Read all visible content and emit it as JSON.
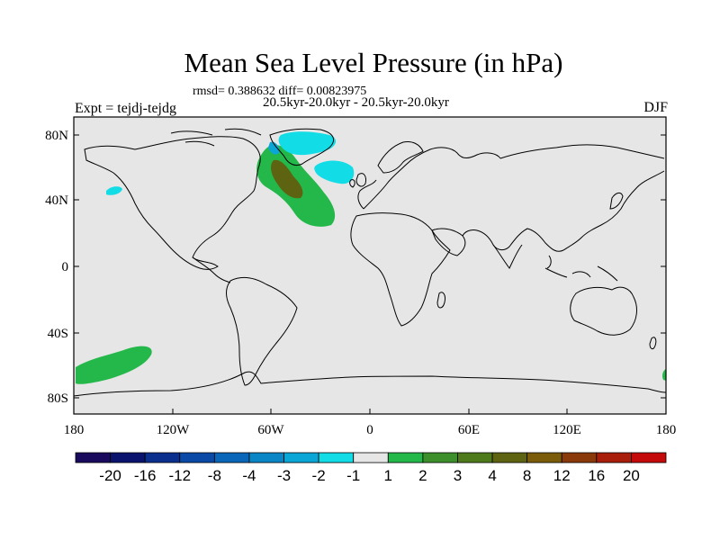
{
  "title": "Mean Sea Level Pressure (in hPa)",
  "stats": "rmsd= 0.388632 diff= 0.00823975",
  "period": "20.5kyr-20.0kyr - 20.5kyr-20.0kyr",
  "experiment": "Expt = tejdj-tejdg",
  "season": "DJF",
  "lat_ticks": [
    "80N",
    "40N",
    "0",
    "40S",
    "80S"
  ],
  "lon_ticks": [
    "180",
    "120W",
    "60W",
    "0",
    "60E",
    "120E",
    "180"
  ],
  "colorbar": {
    "colors": [
      "#1a0a5e",
      "#0a136e",
      "#0b2f8c",
      "#0a4aa6",
      "#0a66b8",
      "#0a85c6",
      "#0aa6d6",
      "#12dce6",
      "#e6e6e6",
      "#24b84a",
      "#3c8f2a",
      "#4f7a1c",
      "#5e6312",
      "#7a5c0a",
      "#8a3a0a",
      "#a81e0a",
      "#c40a0a"
    ],
    "labels": [
      "-20",
      "-16",
      "-12",
      "-8",
      "-4",
      "-3",
      "-2",
      "-1",
      "1",
      "2",
      "3",
      "4",
      "8",
      "12",
      "16",
      "20"
    ]
  },
  "colors": {
    "ocean_land_fill": "#e6e6e6",
    "positive_light": "#24b84a",
    "positive_dark": "#5e6312",
    "negative_light": "#12dce6",
    "negative_mid": "#0aa6d6"
  }
}
